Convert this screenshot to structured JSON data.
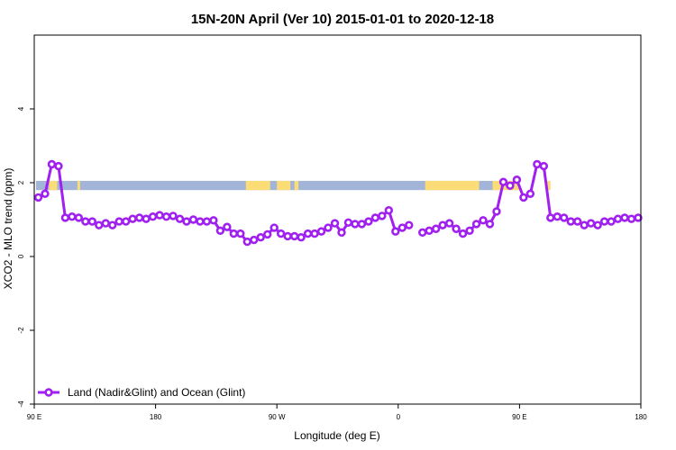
{
  "chart_data": {
    "type": "line",
    "title": "15N-20N April (Ver 10)   2015-01-01 to 2020-12-18",
    "xlabel": "Longitude (deg E)",
    "ylabel": "XCO2 - MLO trend (ppm)",
    "xlim": [
      90,
      450
    ],
    "ylim": [
      -4,
      6
    ],
    "x_ticks": [
      {
        "value": 90,
        "label": "90 E"
      },
      {
        "value": 180,
        "label": "180"
      },
      {
        "value": 270,
        "label": "90 W"
      },
      {
        "value": 360,
        "label": "0"
      },
      {
        "value": 450,
        "label": "90 E"
      },
      {
        "value": 540,
        "label": "180"
      }
    ],
    "y_ticks": [
      {
        "value": -4,
        "label": "-4"
      },
      {
        "value": -2,
        "label": "-2"
      },
      {
        "value": 0,
        "label": "0"
      },
      {
        "value": 2,
        "label": "2"
      },
      {
        "value": 4,
        "label": "4"
      }
    ],
    "x_display_range": [
      90,
      540
    ],
    "land_ocean_band": {
      "y_range": [
        1.8,
        2.05
      ],
      "ocean_color": "#a2b5d8",
      "land_color": "#fcdc76",
      "land_segments": [
        [
          101,
          107
        ],
        [
          122,
          124
        ],
        [
          247,
          265
        ],
        [
          270,
          280
        ],
        [
          283,
          286
        ],
        [
          380,
          420
        ],
        [
          430,
          450
        ],
        [
          470,
          473
        ]
      ]
    },
    "series": [
      {
        "name": "Land (Nadir&Glint) and Ocean (Glint)",
        "color": "#a020f0",
        "segments": [
          {
            "x": [
              93,
              98,
              103,
              108,
              113,
              118,
              123,
              128,
              133,
              138,
              143,
              148,
              153,
              158,
              163,
              168,
              173,
              178,
              183,
              188,
              193,
              198,
              203,
              208,
              213,
              218,
              223,
              228,
              233,
              238,
              243,
              248,
              253,
              258,
              263,
              268,
              273,
              278,
              283,
              288,
              293,
              298,
              303,
              308,
              313,
              318,
              323,
              328,
              333,
              338,
              343,
              348,
              353,
              358
            ],
            "y": [
              1.6,
              1.7,
              2.5,
              2.45,
              1.05,
              1.08,
              1.05,
              0.95,
              0.95,
              0.85,
              0.9,
              0.85,
              0.95,
              0.95,
              1.02,
              1.05,
              1.02,
              1.08,
              1.12,
              1.08,
              1.1,
              1.02,
              0.95,
              1,
              0.95,
              0.95,
              0.98,
              0.7,
              0.8,
              0.62,
              0.62,
              0.4,
              0.45,
              0.52,
              0.6,
              0.78,
              0.62,
              0.55,
              0.55,
              0.52,
              0.62,
              0.62,
              0.68,
              0.78,
              0.9,
              0.65,
              0.92,
              0.88,
              0.88,
              0.95,
              1.05,
              1.1,
              1.25,
              0.68
            ]
          },
          {
            "x": [
              363,
              368
            ],
            "y": [
              0.78,
              0.85
            ]
          },
          {
            "x": [
              378,
              383,
              388,
              393,
              398,
              403,
              408,
              413,
              418,
              423,
              428,
              433,
              438,
              443,
              448,
              453,
              458,
              463,
              468,
              473,
              478,
              483,
              488,
              493,
              498,
              503,
              508,
              513,
              518,
              523,
              528,
              533,
              538
            ],
            "y": [
              0.65,
              0.7,
              0.75,
              0.85,
              0.9,
              0.75,
              0.62,
              0.7,
              0.88,
              0.98,
              0.88,
              1.22,
              2.02,
              1.92,
              2.08,
              1.6,
              1.7,
              2.5,
              2.45,
              1.05,
              1.08,
              1.05,
              0.95,
              0.95,
              0.85,
              0.9,
              0.85,
              0.95,
              0.95,
              1.02,
              1.05,
              1.02,
              1.05
            ]
          }
        ]
      }
    ],
    "legend": {
      "placement": "bottom-left"
    },
    "grid": false
  }
}
